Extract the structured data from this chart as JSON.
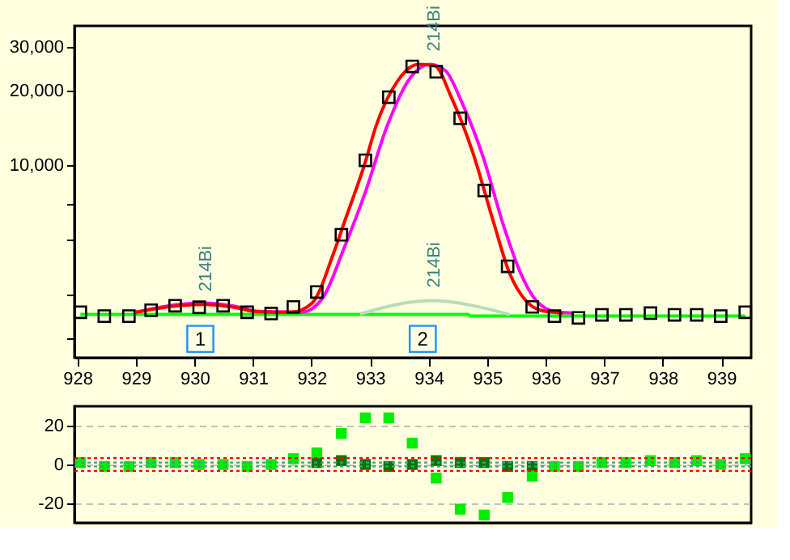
{
  "chart_data": [
    {
      "type": "line",
      "xlim": [
        927.95,
        939.51
      ],
      "xticks": [
        928,
        929,
        930,
        931,
        932,
        933,
        934,
        935,
        936,
        937,
        938,
        939
      ],
      "log": true,
      "ylim": [
        1680,
        36400
      ],
      "yticks": [
        {
          "value": 2000,
          "label": null
        },
        {
          "value": 3000,
          "label": null
        },
        {
          "value": 5000,
          "label": null
        },
        {
          "value": 7000,
          "label": null
        },
        {
          "value": 10000,
          "label": "10,000"
        },
        {
          "value": 20000,
          "label": "20,000"
        },
        {
          "value": 30000,
          "label": "30,000"
        }
      ],
      "grid": false,
      "legend": false,
      "series": [
        {
          "type": "line",
          "color": "#00ff00",
          "x": [
            928.05,
            934.68,
            934.7,
            939.41
          ],
          "values": [
            2510,
            2510,
            2470,
            2470
          ]
        },
        {
          "type": "line",
          "color": "#b8dcb8",
          "x": [
            932.83,
            934.03,
            935.38
          ],
          "values": [
            2520,
            2850,
            2510
          ]
        },
        {
          "type": "line",
          "color": "#ff00ff",
          "x": [
            929.0,
            929.73,
            930.19,
            930.64,
            931.1,
            931.83,
            932.19,
            932.56,
            932.92,
            933.29,
            933.65,
            934.02,
            934.29,
            934.56,
            934.93,
            935.29,
            935.57,
            935.84,
            936.2,
            936.48
          ],
          "values": [
            2560,
            2750,
            2790,
            2720,
            2580,
            2560,
            2920,
            4670,
            7800,
            14350,
            21850,
            25500,
            23990,
            18110,
            10830,
            5620,
            3690,
            2850,
            2560,
            2540
          ]
        },
        {
          "type": "line",
          "color": "#ff0000",
          "x": [
            929.0,
            929.73,
            930.19,
            930.64,
            931.1,
            931.65,
            932.01,
            932.38,
            932.56,
            932.92,
            933.1,
            933.47,
            933.83,
            934.11,
            934.38,
            934.75,
            935.11,
            935.38,
            935.66,
            935.93,
            936.3
          ],
          "values": [
            2560,
            2720,
            2750,
            2690,
            2570,
            2560,
            2790,
            4450,
            5890,
            10330,
            14350,
            21850,
            25500,
            25100,
            18970,
            11350,
            5890,
            3690,
            2850,
            2600,
            2540
          ]
        },
        {
          "type": "scatter",
          "marker": "square",
          "color": "#000000",
          "x": [
            928.05,
            928.46,
            928.88,
            929.26,
            929.67,
            930.08,
            930.49,
            930.9,
            931.31,
            931.69,
            932.09,
            932.51,
            932.92,
            933.32,
            933.72,
            934.13,
            934.54,
            934.95,
            935.35,
            935.77,
            936.15,
            936.56,
            936.96,
            937.37,
            937.79,
            938.2,
            938.58,
            938.99,
            939.41
          ],
          "values": [
            2560,
            2470,
            2470,
            2610,
            2720,
            2680,
            2720,
            2560,
            2530,
            2690,
            3090,
            5250,
            10470,
            18800,
            25000,
            23800,
            15450,
            7910,
            3920,
            2690,
            2470,
            2430,
            2500,
            2500,
            2540,
            2500,
            2500,
            2470,
            2560
          ]
        }
      ],
      "annotations": [
        {
          "text": "214Bi",
          "x": 930.2,
          "y": 2750
        },
        {
          "text": "214Bi",
          "x": 934.1,
          "y": 2850
        },
        {
          "text": "214Bi",
          "x": 934.1,
          "y": 25500
        },
        {
          "text": "1",
          "x": 930.1,
          "y": 2000
        },
        {
          "text": "2",
          "x": 933.9,
          "y": 2000
        }
      ]
    },
    {
      "type": "scatter",
      "xlim": [
        927.95,
        939.51
      ],
      "ylim": [
        -30,
        30
      ],
      "yticks": [
        -20,
        0,
        20
      ],
      "tick_labels": "y",
      "grid": "y",
      "legend": false,
      "ref_lines": [
        {
          "axis": "y",
          "value": 3.3,
          "color": "#ff0000",
          "line_style": "dotted"
        },
        {
          "axis": "y",
          "value": -3.3,
          "color": "#ff0000",
          "line_style": "dotted"
        },
        {
          "axis": "y",
          "value": 1,
          "color": "#40a080",
          "line_style": "dotted"
        },
        {
          "axis": "y",
          "value": -1,
          "color": "#40a080",
          "line_style": "dotted"
        }
      ],
      "series": [
        {
          "marker": "square",
          "color": "#007800",
          "x": [
            932.09,
            932.51,
            932.92,
            933.32,
            933.72,
            934.13,
            934.54,
            934.95,
            935.35,
            935.77
          ],
          "values": [
            1,
            2,
            0,
            -1,
            0,
            2,
            1,
            1,
            -1,
            -1
          ]
        },
        {
          "marker": "square",
          "color": "#00ee00",
          "x": [
            928.05,
            928.46,
            928.88,
            929.26,
            929.67,
            930.08,
            930.49,
            930.9,
            931.31,
            931.69,
            932.09,
            932.51,
            932.92,
            933.32,
            933.72,
            934.13,
            934.54,
            934.95,
            935.35,
            935.77,
            936.15,
            936.56,
            936.96,
            937.37,
            937.79,
            938.2,
            938.58,
            938.99,
            939.41
          ],
          "values": [
            1,
            -1,
            -1,
            1,
            1,
            0,
            0,
            -1,
            0,
            3,
            6,
            16,
            24,
            24,
            11,
            -7,
            -23,
            -26,
            -17,
            -6,
            -1,
            -1,
            1,
            1,
            2,
            1,
            2,
            0,
            3
          ]
        }
      ]
    }
  ]
}
